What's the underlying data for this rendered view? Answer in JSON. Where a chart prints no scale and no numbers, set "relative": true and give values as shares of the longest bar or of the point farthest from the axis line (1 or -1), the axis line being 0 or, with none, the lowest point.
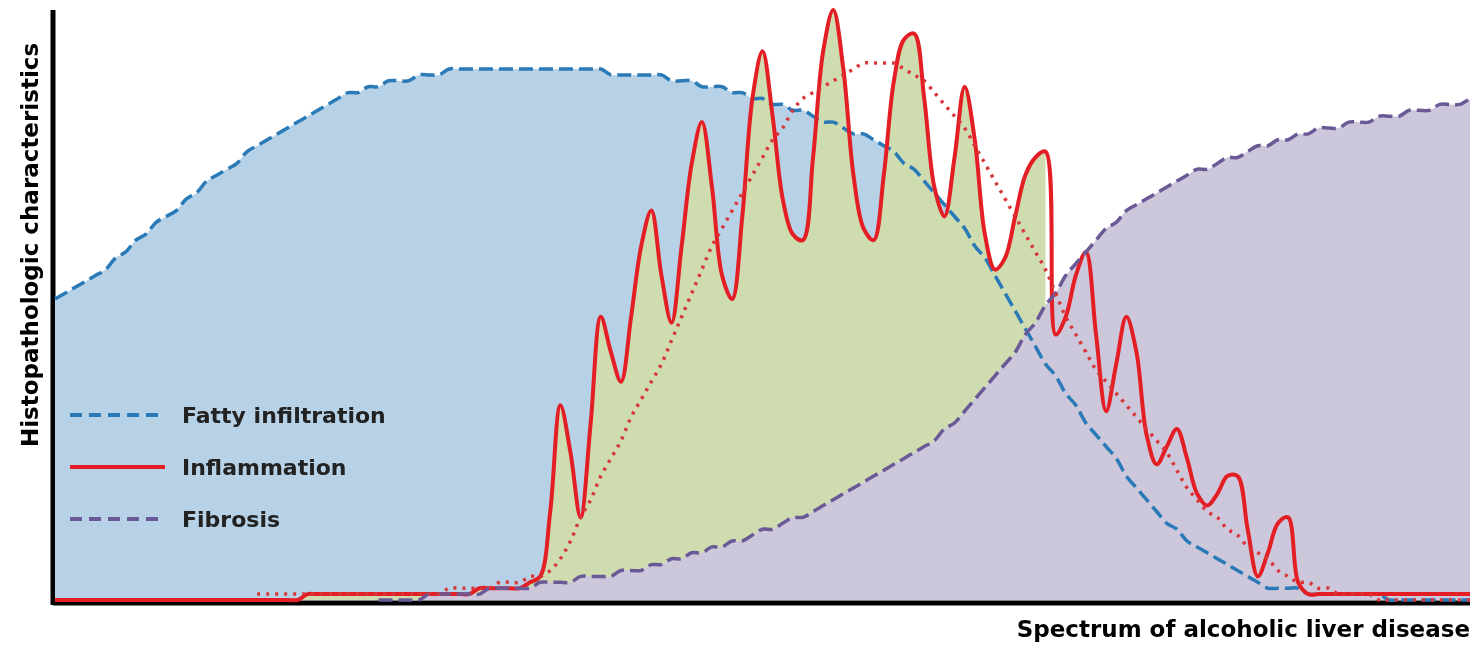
{
  "chart_data": {
    "type": "area",
    "relative": true,
    "xlabel": "Spectrum of alcoholic liver disease",
    "ylabel": "Histopathologic characteristics",
    "legend": "left",
    "categories": [
      null,
      null,
      null,
      null,
      null,
      null,
      null,
      null,
      null,
      null,
      null,
      null,
      null,
      null,
      null,
      null,
      null,
      null,
      null,
      null,
      null,
      null,
      null,
      null,
      null,
      null,
      null,
      null,
      null,
      null,
      null,
      null,
      null,
      null,
      null,
      null,
      null,
      null,
      null,
      null,
      null,
      null,
      null,
      null,
      null,
      null,
      null,
      null,
      null,
      null,
      null,
      null,
      null,
      null,
      null,
      null,
      null,
      null,
      null,
      null,
      null,
      null,
      null,
      null,
      null,
      null,
      null,
      null,
      null,
      null,
      null,
      null,
      null,
      null,
      null,
      null,
      null,
      null,
      null,
      null,
      null,
      null,
      null,
      null,
      null,
      null,
      null,
      null,
      null,
      null,
      null,
      null,
      null,
      null,
      null,
      null,
      null,
      null,
      null,
      null,
      null,
      null,
      null,
      null,
      null,
      null,
      null,
      null,
      null,
      null,
      null,
      null,
      null,
      null,
      null,
      null,
      null,
      null,
      null,
      null,
      null,
      null,
      null,
      null,
      null,
      null,
      null,
      null,
      null,
      null,
      null,
      null,
      null,
      null,
      null,
      null,
      null,
      null,
      null,
      null,
      null
    ],
    "series": [
      {
        "name": "Fatty infiltration",
        "color": "#2a7ab8",
        "line_style": "dashed",
        "values": [
          0.51,
          0.52,
          0.53,
          0.54,
          0.55,
          0.56,
          0.58,
          0.59,
          0.61,
          0.62,
          0.64,
          0.65,
          0.66,
          0.68,
          0.69,
          0.71,
          0.72,
          0.73,
          0.74,
          0.76,
          0.77,
          0.78,
          0.79,
          0.8,
          0.81,
          0.82,
          0.83,
          0.84,
          0.85,
          0.86,
          0.86,
          0.87,
          0.87,
          0.88,
          0.88,
          0.88,
          0.89,
          0.89,
          0.89,
          0.9,
          0.9,
          0.9,
          0.9,
          0.9,
          0.9,
          0.9,
          0.9,
          0.9,
          0.9,
          0.9,
          0.9,
          0.9,
          0.9,
          0.9,
          0.9,
          0.89,
          0.89,
          0.89,
          0.89,
          0.89,
          0.89,
          0.88,
          0.88,
          0.88,
          0.87,
          0.87,
          0.87,
          0.86,
          0.86,
          0.85,
          0.85,
          0.84,
          0.84,
          0.83,
          0.83,
          0.82,
          0.81,
          0.81,
          0.8,
          0.79,
          0.79,
          0.78,
          0.77,
          0.76,
          0.74,
          0.73,
          0.71,
          0.69,
          0.67,
          0.65,
          0.63,
          0.6,
          0.58,
          0.55,
          0.52,
          0.49,
          0.46,
          0.43,
          0.4,
          0.38,
          0.35,
          0.33,
          0.3,
          0.28,
          0.26,
          0.24,
          0.21,
          0.19,
          0.17,
          0.15,
          0.13,
          0.12,
          0.1,
          0.09,
          0.08,
          0.07,
          0.06,
          0.05,
          0.04,
          0.03,
          0.02,
          0.02,
          0.02,
          0.02,
          0.01,
          0.01,
          0.01,
          0.01,
          0.01,
          0.01,
          0.01,
          0.01,
          0,
          0,
          0,
          0,
          0,
          0,
          0,
          0,
          0
        ]
      },
      {
        "color": "#cfdcb0",
        "line_style": "none",
        "values": [
          0,
          0,
          0,
          0,
          0,
          0,
          0,
          0,
          0,
          0,
          0,
          0,
          0,
          0,
          0,
          0,
          0,
          0,
          0,
          0,
          0,
          0,
          0,
          0,
          0,
          0.01,
          0.01,
          0.01,
          0.01,
          0.01,
          0.01,
          0.01,
          0.01,
          0.01,
          0.01,
          0.01,
          0.01,
          0.01,
          0.01,
          0.01,
          0.01,
          0.01,
          0.02,
          0.02,
          0.02,
          0.02,
          0.02,
          0.03,
          0.04,
          0.15,
          0.33,
          0.25,
          0.14,
          0.3,
          0.48,
          0.42,
          0.37,
          0.48,
          0.6,
          0.66,
          0.55,
          0.47,
          0.6,
          0.74,
          0.81,
          0.7,
          0.55,
          0.51,
          0.65,
          0.85,
          0.93,
          0.82,
          0.68,
          0.62,
          0.61,
          0.75,
          0.93,
          1,
          0.9,
          0.72,
          0.63,
          0.61,
          0.72,
          0.88,
          0.95,
          0.96,
          0.85,
          0.7,
          0.65,
          0.75,
          0.87,
          0.78,
          0.62,
          0.56,
          0.58,
          0.65,
          0.72,
          0.75,
          0.76,
          null,
          null,
          null,
          null,
          null,
          null,
          null,
          null,
          null,
          null,
          null,
          null,
          null,
          null,
          null,
          null,
          null,
          null,
          null,
          null,
          null,
          null,
          null,
          null,
          null,
          null,
          null,
          null,
          null,
          null,
          null,
          null,
          null,
          null,
          null,
          null,
          null,
          null,
          null,
          null,
          null,
          null
        ]
      },
      {
        "type": "line",
        "name": "Inflammation",
        "color": "#e31e24",
        "line_style": "solid",
        "values": [
          0,
          0,
          0,
          0,
          0,
          0,
          0,
          0,
          0,
          0,
          0,
          0,
          0,
          0,
          0,
          0,
          0,
          0,
          0,
          0,
          0,
          0,
          0,
          0,
          0,
          0.01,
          0.01,
          0.01,
          0.01,
          0.01,
          0.01,
          0.01,
          0.01,
          0.01,
          0.01,
          0.01,
          0.01,
          0.01,
          0.01,
          0.01,
          0.01,
          0.01,
          0.02,
          0.02,
          0.02,
          0.02,
          0.02,
          0.03,
          0.04,
          0.15,
          0.33,
          0.25,
          0.14,
          0.3,
          0.48,
          0.42,
          0.37,
          0.48,
          0.6,
          0.66,
          0.55,
          0.47,
          0.6,
          0.74,
          0.81,
          0.7,
          0.55,
          0.51,
          0.65,
          0.85,
          0.93,
          0.82,
          0.68,
          0.62,
          0.61,
          0.75,
          0.93,
          1,
          0.9,
          0.72,
          0.63,
          0.61,
          0.72,
          0.88,
          0.95,
          0.96,
          0.85,
          0.7,
          0.65,
          0.75,
          0.87,
          0.78,
          0.62,
          0.56,
          0.58,
          0.65,
          0.72,
          0.75,
          0.76,
          0.45,
          0.48,
          0.55,
          0.59,
          0.45,
          0.32,
          0.4,
          0.48,
          0.42,
          0.28,
          0.23,
          0.26,
          0.29,
          0.24,
          0.18,
          0.16,
          0.18,
          0.21,
          0.21,
          0.12,
          0.04,
          0.08,
          0.13,
          0.14,
          0.03,
          0.01,
          0.01,
          0.01,
          0.01,
          0.01,
          0.01,
          0.01,
          0.01,
          0.01,
          0.01,
          0.01,
          0.01,
          0.01,
          0.01,
          0.01,
          0.01,
          0.01
        ]
      },
      {
        "name": "Fibrosis",
        "color": "#6b5996",
        "line_style": "dashed",
        "values": [
          null,
          null,
          null,
          null,
          null,
          null,
          null,
          null,
          null,
          null,
          null,
          null,
          null,
          null,
          null,
          null,
          null,
          null,
          null,
          null,
          null,
          null,
          null,
          null,
          null,
          null,
          null,
          null,
          null,
          null,
          null,
          null,
          0,
          0,
          0,
          0,
          0,
          0.01,
          0.01,
          0.01,
          0.01,
          0.01,
          0.01,
          0.02,
          0.02,
          0.02,
          0.02,
          0.02,
          0.03,
          0.03,
          0.03,
          0.03,
          0.04,
          0.04,
          0.04,
          0.04,
          0.05,
          0.05,
          0.05,
          0.06,
          0.06,
          0.07,
          0.07,
          0.08,
          0.08,
          0.09,
          0.09,
          0.1,
          0.1,
          0.11,
          0.12,
          0.12,
          0.13,
          0.14,
          0.14,
          0.15,
          0.16,
          0.17,
          0.18,
          0.19,
          0.2,
          0.21,
          0.22,
          0.23,
          0.24,
          0.25,
          0.26,
          0.27,
          0.29,
          0.3,
          0.32,
          0.34,
          0.36,
          0.38,
          0.4,
          0.42,
          0.45,
          0.47,
          0.5,
          0.52,
          0.55,
          0.57,
          0.59,
          0.61,
          0.63,
          0.64,
          0.66,
          0.67,
          0.68,
          0.69,
          0.7,
          0.71,
          0.72,
          0.73,
          0.73,
          0.74,
          0.75,
          0.75,
          0.76,
          0.77,
          0.77,
          0.78,
          0.78,
          0.79,
          0.79,
          0.8,
          0.8,
          0.8,
          0.81,
          0.81,
          0.81,
          0.82,
          0.82,
          0.82,
          0.83,
          0.83,
          0.83,
          0.84,
          0.84,
          0.84,
          0.85
        ]
      },
      {
        "type": "line",
        "color": "#d9363a",
        "line_style": "dotted",
        "values": [
          null,
          null,
          null,
          null,
          null,
          null,
          null,
          null,
          null,
          null,
          null,
          null,
          null,
          null,
          null,
          null,
          null,
          null,
          null,
          null,
          0.01,
          0.01,
          0.01,
          0.01,
          0.01,
          0.01,
          0.01,
          0.01,
          0.01,
          0.01,
          0.01,
          0.01,
          0.01,
          0.01,
          0.01,
          0.01,
          0.01,
          0.01,
          0.01,
          0.02,
          0.02,
          0.02,
          0.02,
          0.02,
          0.03,
          0.03,
          0.03,
          0.04,
          0.04,
          0.05,
          0.07,
          0.1,
          0.14,
          0.17,
          0.21,
          0.24,
          0.27,
          0.31,
          0.34,
          0.37,
          0.4,
          0.44,
          0.48,
          0.52,
          0.56,
          0.6,
          0.63,
          0.66,
          0.69,
          0.72,
          0.75,
          0.78,
          0.8,
          0.83,
          0.85,
          0.86,
          0.87,
          0.88,
          0.89,
          0.9,
          0.91,
          0.91,
          0.91,
          0.91,
          0.9,
          0.89,
          0.88,
          0.86,
          0.84,
          0.82,
          0.8,
          0.77,
          0.74,
          0.71,
          0.68,
          0.65,
          0.62,
          0.59,
          0.56,
          0.52,
          0.48,
          0.45,
          0.42,
          0.39,
          0.37,
          0.35,
          0.33,
          0.31,
          0.29,
          0.27,
          0.25,
          0.22,
          0.19,
          0.17,
          0.15,
          0.14,
          0.12,
          0.11,
          0.09,
          0.08,
          0.07,
          0.05,
          0.04,
          0.03,
          0.03,
          0.02,
          0.02,
          0.01,
          0.01,
          0.01,
          0.01,
          0,
          0,
          0,
          0,
          0,
          0,
          0,
          0,
          0,
          0
        ]
      }
    ]
  }
}
